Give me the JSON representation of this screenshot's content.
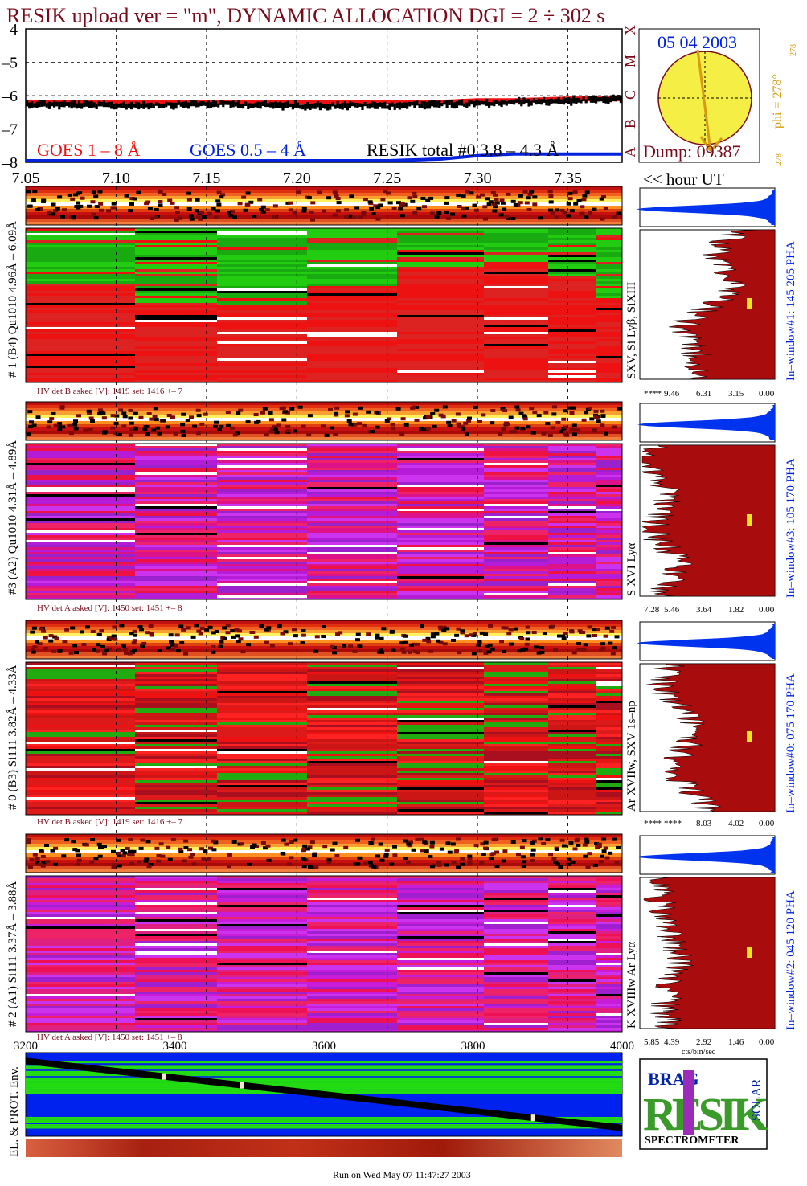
{
  "header": {
    "title": "RESIK upload ver = \"m\", DYNAMIC ALLOCATION  DGI =   2 ÷ 302 s"
  },
  "footer": {
    "run_text": "Run on Wed May 07 11:47:27 2003"
  },
  "colors": {
    "goes_long": "#ee1111",
    "goes_short": "#0022dd",
    "resik_total": "#000000",
    "title": "#7a0a1a",
    "sun": "#f5ee44",
    "spectrum_fill": "#a80c0c",
    "pha_fill": "#0033ee",
    "marker": "#e8e820",
    "logo_green": "#3a9a2a",
    "logo_purple": "#9b2bb8"
  },
  "goes_panel": {
    "legend": [
      "GOES 1 – 8 Å",
      "GOES 0.5 – 4 Å",
      "RESIK total #0  3.8 – 4.3 Å"
    ],
    "xlabel": "<< hour UT"
  },
  "sun_panel": {
    "date": "05 04 2003",
    "phi_label": "phi = 278°",
    "phi_small": "278",
    "dump": "Dump: 09387",
    "class_labels": [
      "A",
      "B",
      "C",
      "M",
      "X"
    ]
  },
  "channels": [
    {
      "left_label": "# 1 (B4) Qu1010 4.96Å – 6.09Å",
      "line_label": "SXV, Si Lyβ, SiXIII",
      "window_label": "In–window#1:  145 205 PHA",
      "hv_text": "HV det B asked [V]:  1419 set:  1416 +–    7",
      "scale_ticks": [
        "****",
        "9.46",
        "6.31",
        "3.15",
        "0.00"
      ]
    },
    {
      "left_label": "#3 (A2) Qu1010  4.31Å – 4.89Å",
      "line_label": "S XVI Lyα",
      "window_label": "In–window#3:  105 170 PHA",
      "hv_text": "HV det A asked [V]:  1450 set:  1451 +–    8",
      "scale_ticks": [
        "7.28",
        "5.46",
        "3.64",
        "1.82",
        "0.00"
      ]
    },
    {
      "left_label": "# 0 (B3) Si111  3.82Å – 4.33Å",
      "line_label": "Ar XVIIw,  SXV 1s–np",
      "window_label": "In–window#0:  075 170 PHA",
      "hv_text": "HV det B asked [V]:  1419 set:  1416 +–    7",
      "scale_ticks": [
        "****",
        "****",
        "8.03",
        "4.02",
        "0.00"
      ]
    },
    {
      "left_label": "# 2 (A1) Si111  3.37Å – 3.88Å",
      "line_label": "K XVIIIw  Ar Lyα",
      "window_label": "In–window#2:  045 120 PHA",
      "hv_text": "HV det A asked [V]:  1450 set:  1451 +–    8",
      "scale_ticks": [
        "5.85",
        "4.39",
        "2.92",
        "1.46",
        "0.00"
      ],
      "scale_unit": "cts/bin/sec"
    }
  ],
  "env_panel": {
    "label": "EL. & PROT. Env."
  },
  "logo": {
    "brand": "RESIK",
    "letters_top": "BRAG",
    "letters_side": "SOLAR",
    "caption": "SPECTROMETER"
  },
  "chart_data": [
    {
      "type": "line",
      "name": "goes_lightcurve",
      "ylabel": "",
      "xlim": [
        7.05,
        7.38
      ],
      "ylim": [
        -8,
        -4
      ],
      "grid": true,
      "legend_position": "bottom-left",
      "x_ticks": [
        7.05,
        7.1,
        7.15,
        7.2,
        7.25,
        7.3,
        7.35
      ],
      "x_tick_labels": [
        "7.05",
        "7.10",
        "7.15",
        "7.20",
        "7.25",
        "7.30",
        "7.35"
      ],
      "y_ticks": [
        -4,
        -5,
        -6,
        -7,
        -8
      ],
      "y_tick_labels": [
        "–4",
        "–5",
        "–6",
        "–7",
        "–8"
      ],
      "x": [
        7.05,
        7.1,
        7.15,
        7.2,
        7.25,
        7.28,
        7.3,
        7.32,
        7.35,
        7.38
      ],
      "series": [
        {
          "name": "GOES 1 – 8 Å",
          "values": [
            -6.2,
            -6.2,
            -6.2,
            -6.2,
            -6.2,
            -6.2,
            -6.15,
            -6.15,
            -6.1,
            -6.1
          ]
        },
        {
          "name": "GOES 0.5 – 4 Å",
          "values": [
            -8.0,
            -8.0,
            -8.0,
            -8.0,
            -8.0,
            -7.95,
            -7.85,
            -7.8,
            -7.8,
            -7.8
          ]
        },
        {
          "name": "RESIK total #0  3.8 – 4.3 Å",
          "values": [
            -6.25,
            -6.3,
            -6.25,
            -6.3,
            -6.3,
            -6.25,
            -6.25,
            -6.2,
            -6.15,
            -6.1
          ]
        }
      ]
    },
    {
      "type": "line",
      "name": "electron_proton_environment",
      "xlim": [
        3200,
        4000
      ],
      "x_ticks": [
        3200,
        3400,
        3600,
        3800,
        4000
      ],
      "x_tick_labels": [
        "3200",
        "3400",
        "3600",
        "3800",
        "4000"
      ],
      "x": [
        3200,
        4000
      ],
      "values": [
        0.9,
        0.1
      ]
    }
  ]
}
